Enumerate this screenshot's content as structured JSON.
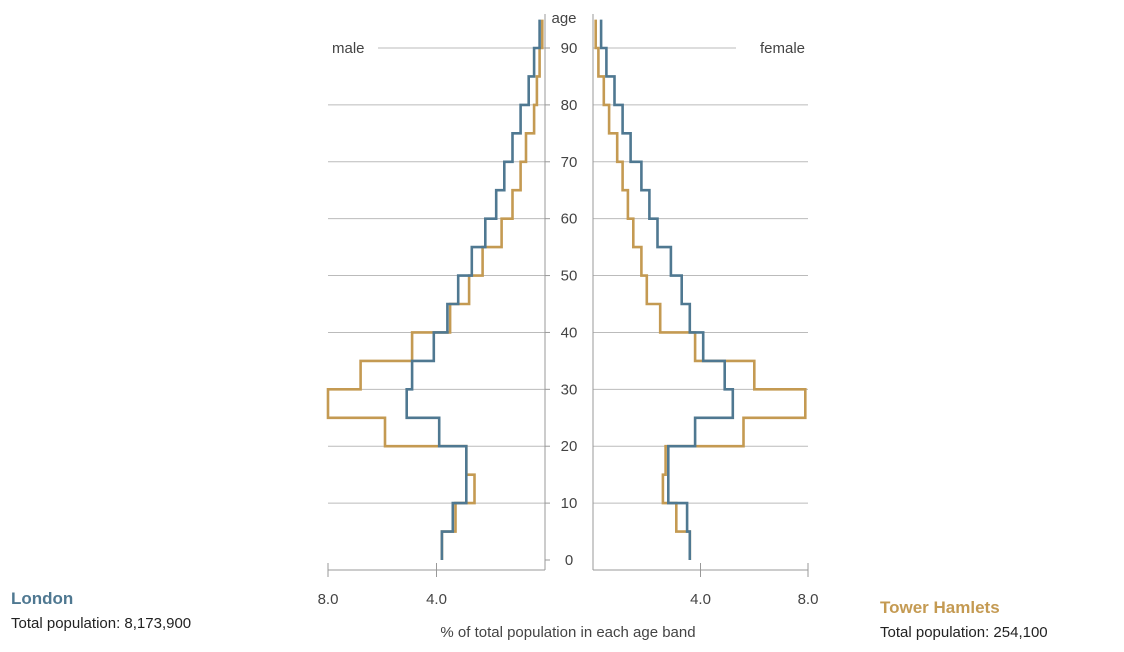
{
  "chart_data": {
    "type": "population-pyramid",
    "y_axis_title": "age",
    "x_axis_title": "% of total population in each age band",
    "male_label": "male",
    "female_label": "female",
    "age_ticks": [
      0,
      10,
      20,
      30,
      40,
      50,
      60,
      70,
      80,
      90
    ],
    "pct_ticks": [
      {
        "value": 8.0,
        "label": "8.0"
      },
      {
        "value": 4.0,
        "label": "4.0"
      }
    ],
    "x_range": [
      0,
      8
    ],
    "age_bands": [
      "0-4",
      "5-9",
      "10-14",
      "15-19",
      "20-24",
      "25-29",
      "30-34",
      "35-39",
      "40-44",
      "45-49",
      "50-54",
      "55-59",
      "60-64",
      "65-69",
      "70-74",
      "75-79",
      "80-84",
      "85-89",
      "90+"
    ],
    "series": [
      {
        "name": "London",
        "color": "#4f7891",
        "male": [
          3.8,
          3.4,
          2.9,
          2.9,
          3.9,
          5.1,
          4.9,
          4.1,
          3.6,
          3.2,
          2.7,
          2.2,
          1.8,
          1.5,
          1.2,
          0.9,
          0.6,
          0.4,
          0.2
        ],
        "female": [
          3.6,
          3.5,
          2.8,
          2.8,
          3.8,
          5.2,
          4.9,
          4.1,
          3.6,
          3.3,
          2.9,
          2.4,
          2.1,
          1.8,
          1.4,
          1.1,
          0.8,
          0.5,
          0.3
        ]
      },
      {
        "name": "Tower Hamlets",
        "color": "#c49a52",
        "male": [
          3.8,
          3.3,
          2.6,
          2.9,
          5.9,
          8.0,
          6.8,
          4.9,
          3.5,
          2.8,
          2.3,
          1.6,
          1.2,
          0.9,
          0.7,
          0.4,
          0.3,
          0.2,
          0.1
        ],
        "female": [
          3.6,
          3.1,
          2.6,
          2.7,
          5.6,
          7.9,
          6.0,
          3.8,
          2.5,
          2.0,
          1.8,
          1.5,
          1.3,
          1.1,
          0.9,
          0.6,
          0.4,
          0.2,
          0.1
        ]
      }
    ]
  },
  "legend": {
    "london": {
      "name": "London",
      "population": "Total population: 8,173,900",
      "color": "#4f7891"
    },
    "tower": {
      "name": "Tower Hamlets",
      "population": "Total population: 254,100",
      "color": "#c49a52"
    }
  }
}
